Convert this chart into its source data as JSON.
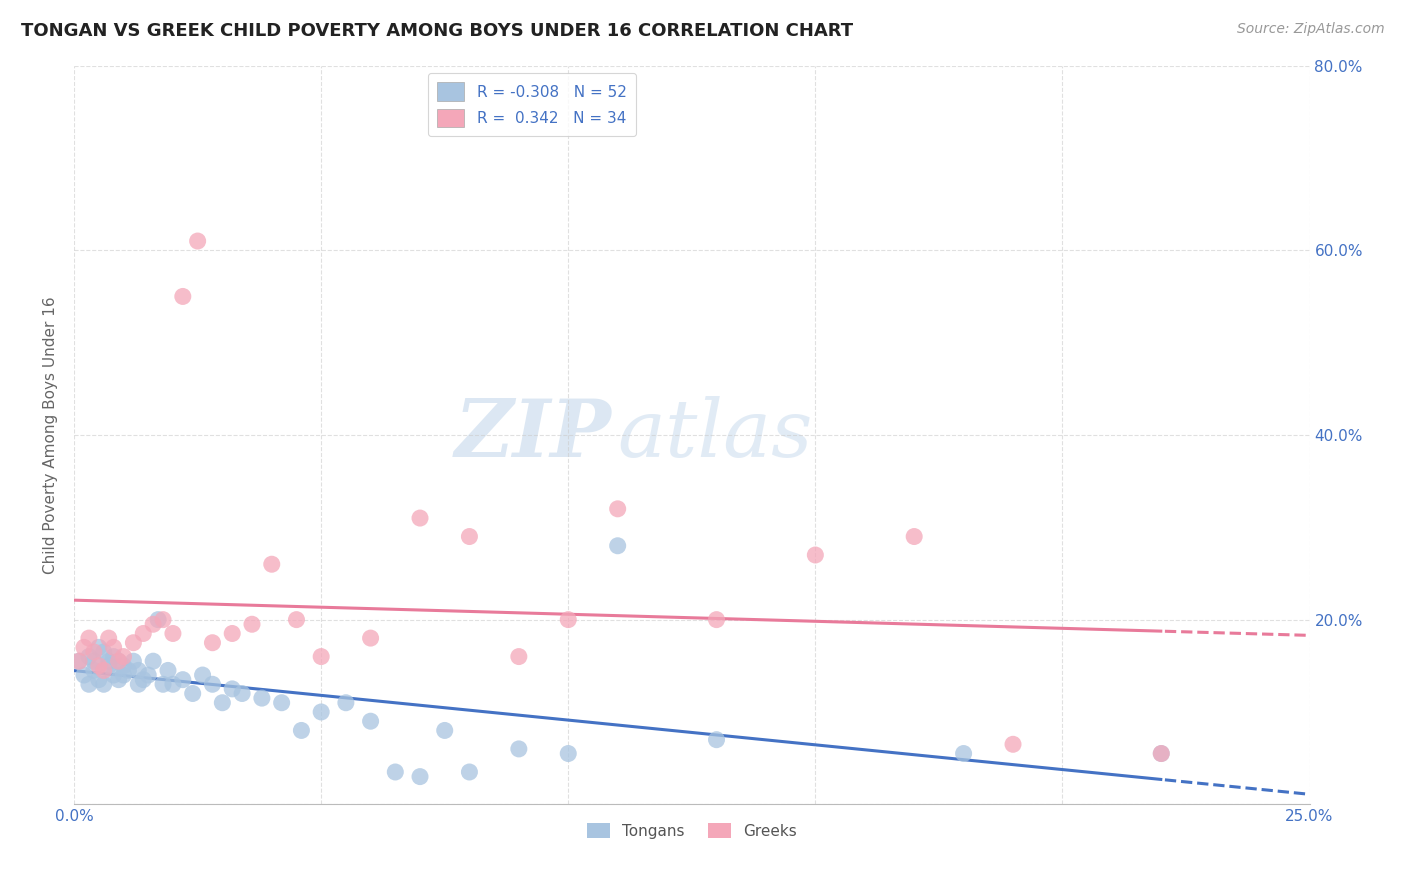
{
  "title": "TONGAN VS GREEK CHILD POVERTY AMONG BOYS UNDER 16 CORRELATION CHART",
  "source": "Source: ZipAtlas.com",
  "ylabel": "Child Poverty Among Boys Under 16",
  "xlabel": "",
  "xlim": [
    0.0,
    0.25
  ],
  "ylim": [
    0.0,
    0.8
  ],
  "xticks": [
    0.0,
    0.05,
    0.1,
    0.15,
    0.2,
    0.25
  ],
  "xtick_labels": [
    "0.0%",
    "",
    "",
    "",
    "",
    "25.0%"
  ],
  "yticks": [
    0.0,
    0.2,
    0.4,
    0.6,
    0.8
  ],
  "ytick_labels_right": [
    "",
    "20.0%",
    "40.0%",
    "60.0%",
    "80.0%"
  ],
  "tongan_R": -0.308,
  "tongan_N": 52,
  "greek_R": 0.342,
  "greek_N": 34,
  "tongan_color": "#a8c4e0",
  "greek_color": "#f4a7b9",
  "tongan_line_color": "#4472c4",
  "greek_line_color": "#e87a9a",
  "watermark_zip": "ZIP",
  "watermark_atlas": "atlas",
  "tongan_x": [
    0.001,
    0.002,
    0.003,
    0.003,
    0.004,
    0.004,
    0.005,
    0.005,
    0.006,
    0.006,
    0.007,
    0.007,
    0.008,
    0.008,
    0.009,
    0.009,
    0.01,
    0.01,
    0.011,
    0.012,
    0.013,
    0.013,
    0.014,
    0.015,
    0.016,
    0.017,
    0.018,
    0.019,
    0.02,
    0.022,
    0.024,
    0.026,
    0.028,
    0.03,
    0.032,
    0.034,
    0.038,
    0.042,
    0.046,
    0.05,
    0.055,
    0.06,
    0.065,
    0.07,
    0.075,
    0.08,
    0.09,
    0.1,
    0.11,
    0.13,
    0.18,
    0.22
  ],
  "tongan_y": [
    0.155,
    0.14,
    0.16,
    0.13,
    0.155,
    0.145,
    0.17,
    0.135,
    0.165,
    0.13,
    0.15,
    0.155,
    0.14,
    0.16,
    0.155,
    0.135,
    0.15,
    0.14,
    0.145,
    0.155,
    0.13,
    0.145,
    0.135,
    0.14,
    0.155,
    0.2,
    0.13,
    0.145,
    0.13,
    0.135,
    0.12,
    0.14,
    0.13,
    0.11,
    0.125,
    0.12,
    0.115,
    0.11,
    0.08,
    0.1,
    0.11,
    0.09,
    0.035,
    0.03,
    0.08,
    0.035,
    0.06,
    0.055,
    0.28,
    0.07,
    0.055,
    0.055
  ],
  "greek_x": [
    0.001,
    0.002,
    0.003,
    0.004,
    0.005,
    0.006,
    0.007,
    0.008,
    0.009,
    0.01,
    0.012,
    0.014,
    0.016,
    0.018,
    0.02,
    0.022,
    0.025,
    0.028,
    0.032,
    0.036,
    0.04,
    0.045,
    0.05,
    0.06,
    0.07,
    0.08,
    0.09,
    0.1,
    0.11,
    0.13,
    0.15,
    0.17,
    0.19,
    0.22
  ],
  "greek_y": [
    0.155,
    0.17,
    0.18,
    0.165,
    0.15,
    0.145,
    0.18,
    0.17,
    0.155,
    0.16,
    0.175,
    0.185,
    0.195,
    0.2,
    0.185,
    0.55,
    0.61,
    0.175,
    0.185,
    0.195,
    0.26,
    0.2,
    0.16,
    0.18,
    0.31,
    0.29,
    0.16,
    0.2,
    0.32,
    0.2,
    0.27,
    0.29,
    0.065,
    0.055
  ]
}
